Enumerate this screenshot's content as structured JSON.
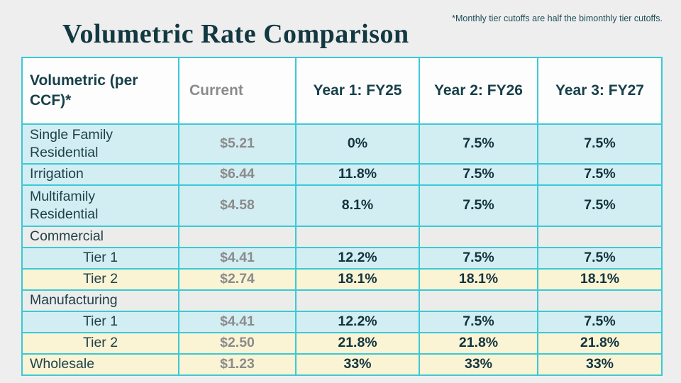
{
  "page": {
    "note": "*Monthly tier cutoffs are half the bimonthly tier cutoffs.",
    "title": "Volumetric Rate Comparison"
  },
  "colors": {
    "accent_border": "#3bc9d6",
    "dark_teal_text": "#17404a",
    "gray_text": "#8b8b8b",
    "cyan_row": "#d3eef3",
    "yellow_row": "#faf3d4",
    "gray_row": "#ececeb",
    "page_bg": "#eeeeee"
  },
  "table": {
    "columns": [
      "Volumetric (per CCF)*",
      "Current",
      "Year 1: FY25",
      "Year 2: FY26",
      "Year 3: FY27"
    ],
    "rows": [
      {
        "label": "Single Family Residential",
        "style": "cyan",
        "indent": false,
        "current": "$5.21",
        "fy25": "0%",
        "fy26": "7.5%",
        "fy27": "7.5%"
      },
      {
        "label": "Irrigation",
        "style": "cyan",
        "indent": false,
        "current": "$6.44",
        "fy25": "11.8%",
        "fy26": "7.5%",
        "fy27": "7.5%"
      },
      {
        "label": "Multifamily Residential",
        "style": "cyan",
        "indent": false,
        "current": "$4.58",
        "fy25": "8.1%",
        "fy26": "7.5%",
        "fy27": "7.5%"
      },
      {
        "label": "Commercial",
        "style": "gray",
        "indent": false,
        "current": "",
        "fy25": "",
        "fy26": "",
        "fy27": ""
      },
      {
        "label": "Tier 1",
        "style": "cyan",
        "indent": true,
        "current": "$4.41",
        "fy25": "12.2%",
        "fy26": "7.5%",
        "fy27": "7.5%"
      },
      {
        "label": "Tier 2",
        "style": "yellow",
        "indent": true,
        "current": "$2.74",
        "fy25": "18.1%",
        "fy26": "18.1%",
        "fy27": "18.1%"
      },
      {
        "label": "Manufacturing",
        "style": "gray",
        "indent": false,
        "current": "",
        "fy25": "",
        "fy26": "",
        "fy27": ""
      },
      {
        "label": "Tier 1",
        "style": "cyan",
        "indent": true,
        "current": "$4.41",
        "fy25": "12.2%",
        "fy26": "7.5%",
        "fy27": "7.5%"
      },
      {
        "label": "Tier 2",
        "style": "yellow",
        "indent": true,
        "current": "$2.50",
        "fy25": "21.8%",
        "fy26": "21.8%",
        "fy27": "21.8%"
      },
      {
        "label": "Wholesale",
        "style": "yellow",
        "indent": false,
        "current": "$1.23",
        "fy25": "33%",
        "fy26": "33%",
        "fy27": "33%"
      }
    ]
  }
}
